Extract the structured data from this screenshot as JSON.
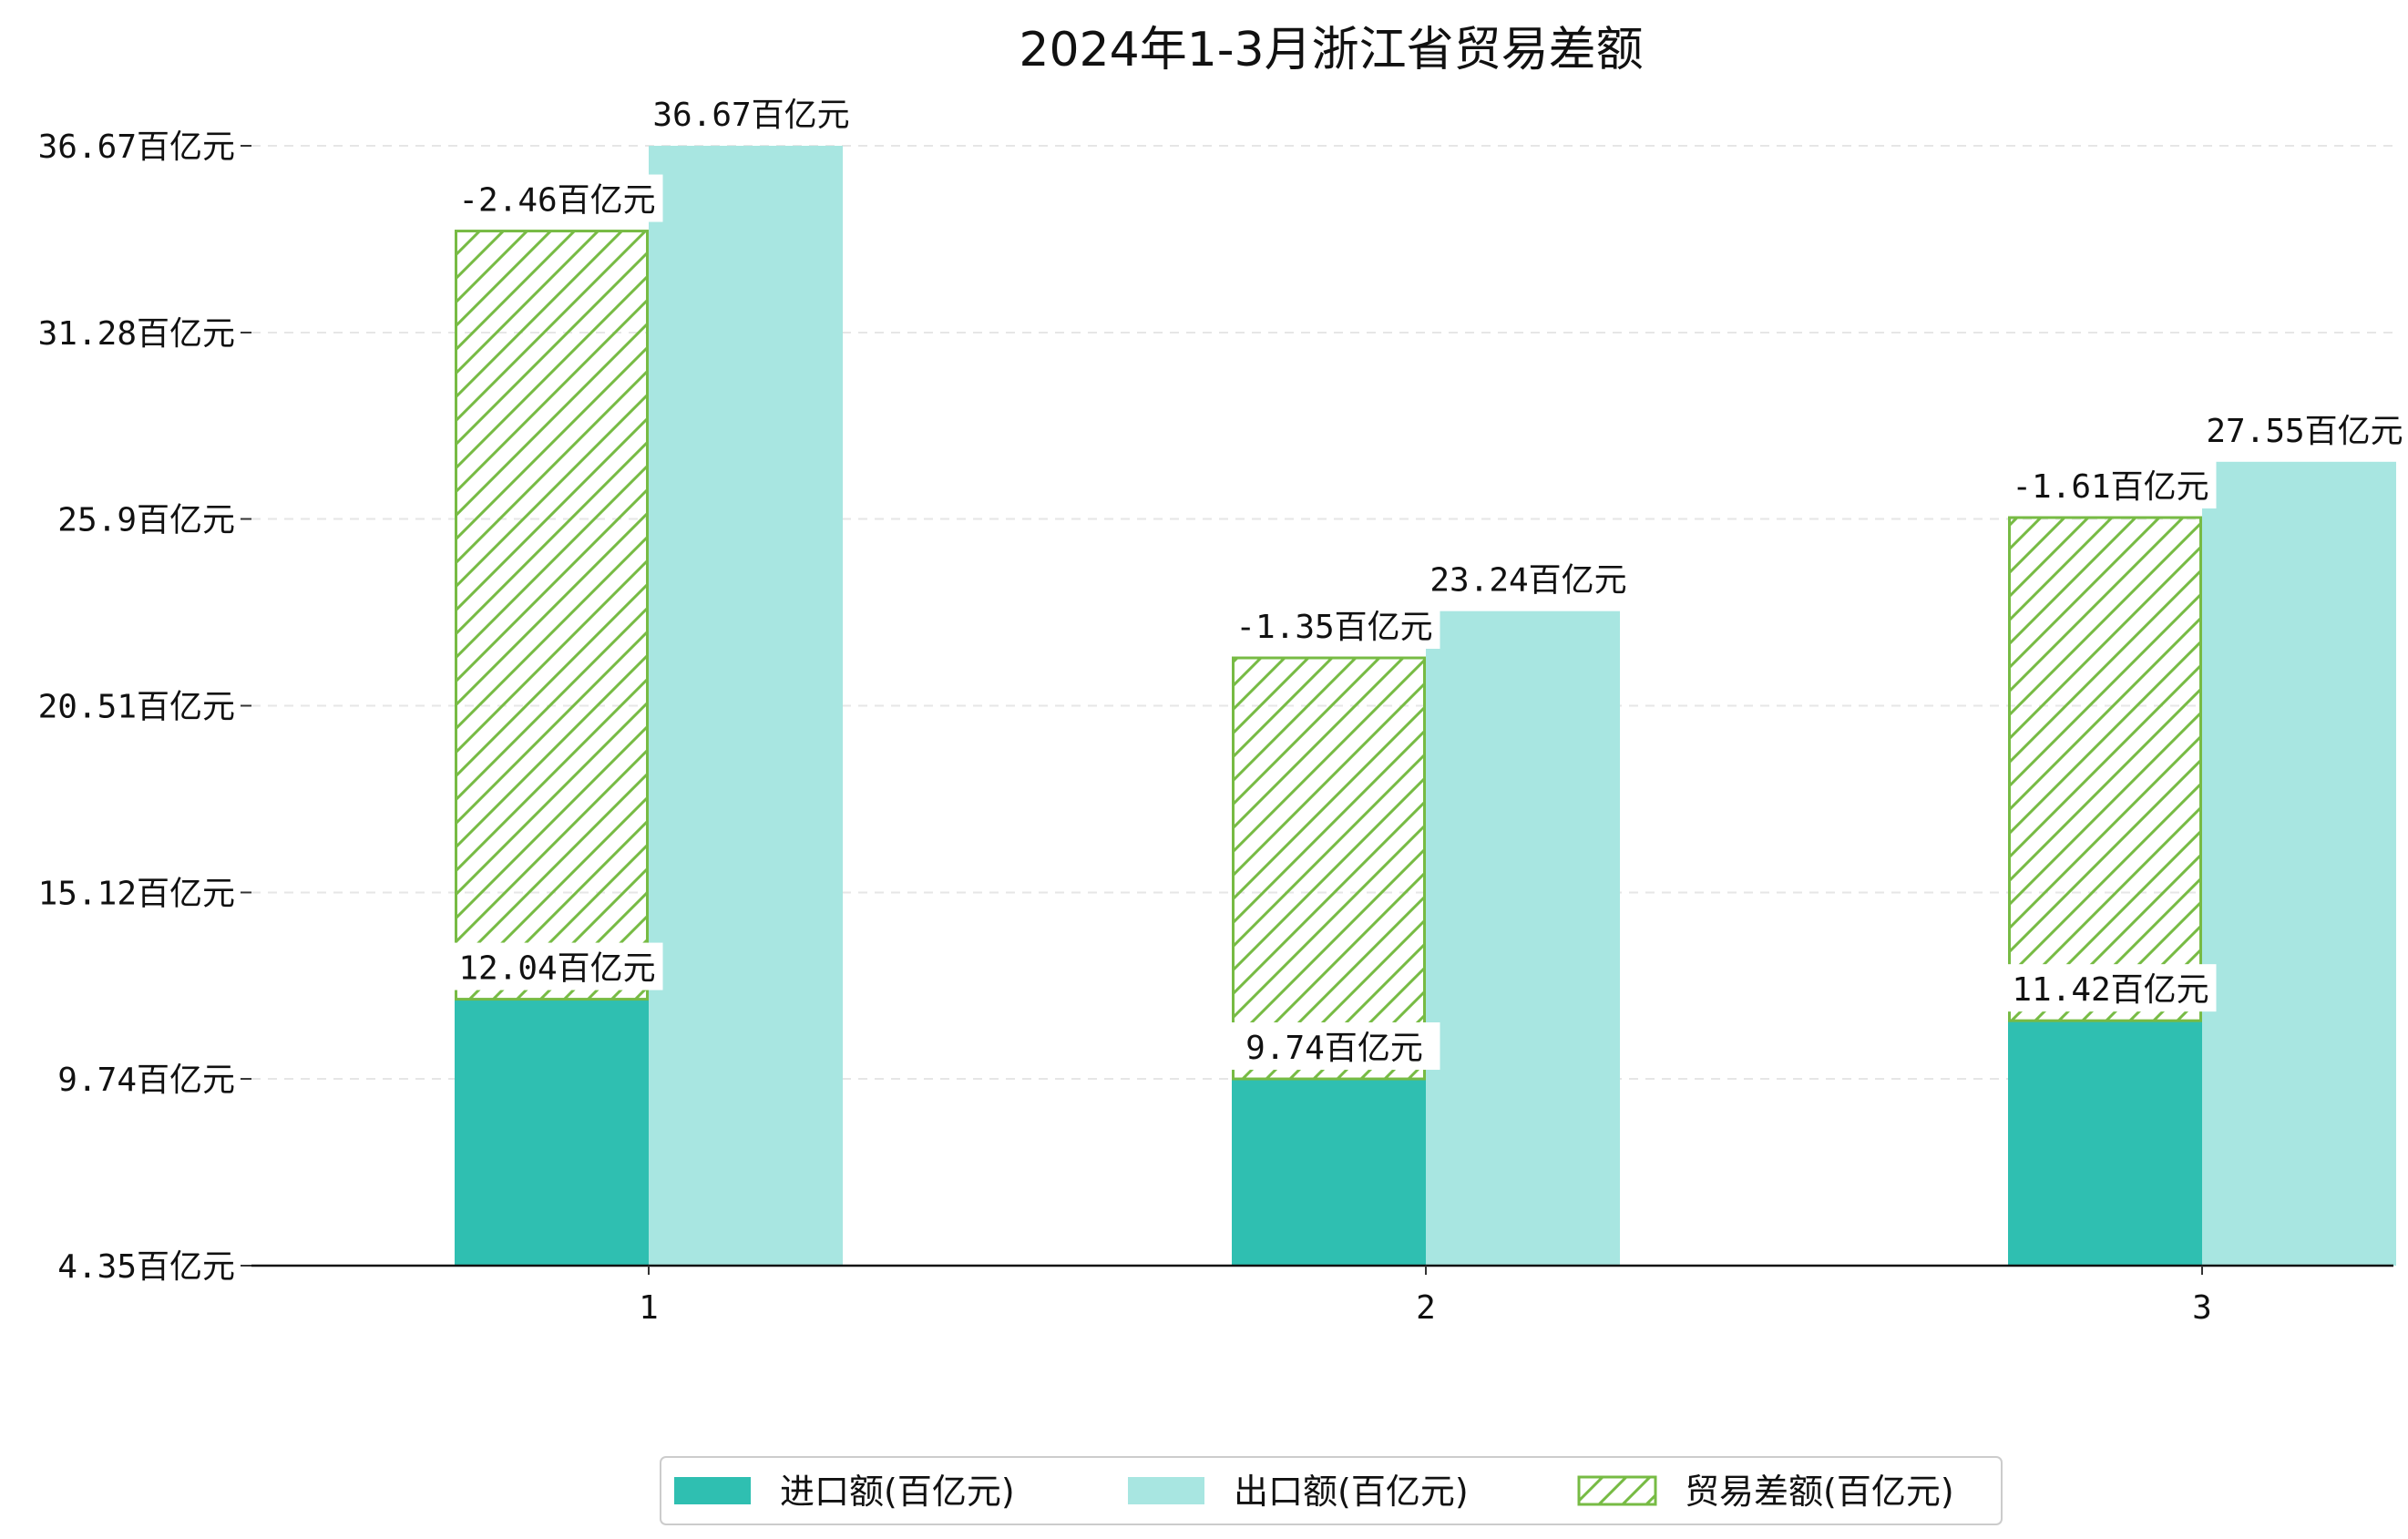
{
  "chart_data": {
    "type": "bar",
    "title": "2024年1-3月浙江省贸易差额",
    "categories": [
      "1",
      "2",
      "3"
    ],
    "series": [
      {
        "name": "进口额(百亿元)",
        "values": [
          12.04,
          9.74,
          11.42
        ],
        "color": "#2fbfb1",
        "labels": [
          "12.04百亿元",
          "9.74百亿元",
          "11.42百亿元"
        ]
      },
      {
        "name": "出口额(百亿元)",
        "values": [
          36.67,
          23.24,
          27.55
        ],
        "color": "#a8e6e1",
        "labels": [
          "36.67百亿元",
          "23.24百亿元",
          "27.55百亿元"
        ]
      },
      {
        "name": "贸易差额(百亿元)",
        "values": [
          -2.46,
          -1.35,
          -1.61
        ],
        "color": "#77bb44",
        "labels": [
          "-2.46百亿元",
          "-1.35百亿元",
          "-1.61百亿元"
        ]
      }
    ],
    "y_ticks": [
      4.35,
      9.74,
      15.12,
      20.51,
      25.9,
      31.28,
      36.67
    ],
    "y_tick_labels": [
      "4.35百亿元",
      "9.74百亿元",
      "15.12百亿元",
      "20.51百亿元",
      "25.9百亿元",
      "31.28百亿元",
      "36.67百亿元"
    ],
    "ylim": [
      4.35,
      36.67
    ],
    "xlabel": "",
    "ylabel": "",
    "grid": "horizontal dashed",
    "legend_position": "bottom-center"
  }
}
